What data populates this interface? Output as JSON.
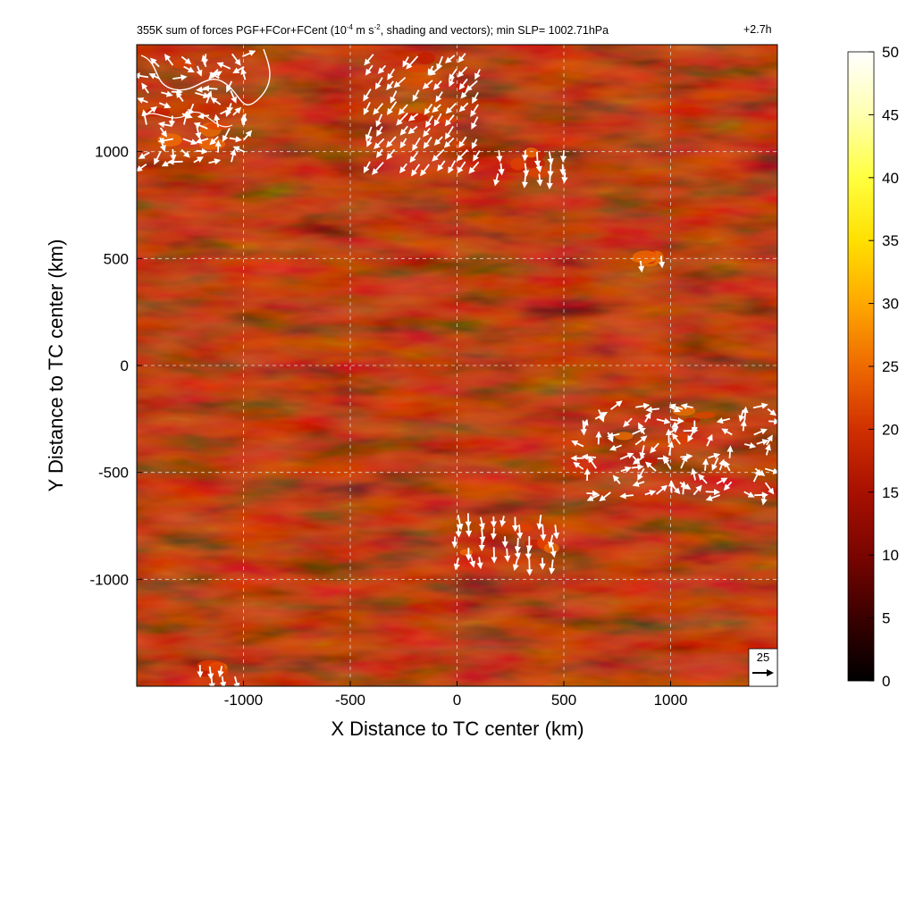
{
  "chart_data": {
    "type": "heatmap",
    "title": {
      "prefix": "355K sum of forces PGF+FCor+FCent (10",
      "exp1": "-4",
      "mid": " m s",
      "exp2": "-2",
      "suffix": ", shading and vectors); min SLP= 1002.71hPa"
    },
    "time_label": "+2.7h",
    "xlabel": "X Distance to TC center (km)",
    "ylabel": "Y Distance to TC center (km)",
    "xlim": [
      -1500,
      1500
    ],
    "ylim": [
      -1500,
      1500
    ],
    "xticks": [
      -1000,
      -500,
      0,
      500,
      1000
    ],
    "yticks": [
      -1000,
      -500,
      0,
      500,
      1000
    ],
    "grid": true,
    "colorbar": {
      "min": 0,
      "max": 50,
      "ticks": [
        0,
        5,
        10,
        15,
        20,
        25,
        30,
        35,
        40,
        45,
        50
      ],
      "colors": [
        "#000000",
        "#3a0000",
        "#7a0500",
        "#a81000",
        "#d03000",
        "#ee6a00",
        "#ffa800",
        "#ffe000",
        "#ffff40",
        "#ffffb0",
        "#ffffff"
      ]
    },
    "reference_vector": {
      "label": "25"
    },
    "vector_groups": [
      {
        "region": "top-left coast",
        "x": [
          -1450,
          -1000
        ],
        "y": [
          950,
          1450
        ],
        "direction": "mixed"
      },
      {
        "region": "top-center",
        "x": [
          -400,
          100
        ],
        "y": [
          950,
          1450
        ],
        "direction": "south-west"
      },
      {
        "region": "north",
        "x": [
          200,
          500
        ],
        "y": [
          900,
          1000
        ],
        "direction": "south"
      },
      {
        "region": "north-east",
        "x": [
          850,
          950
        ],
        "y": [
          480,
          520
        ],
        "direction": "south"
      },
      {
        "region": "east cluster",
        "x": [
          600,
          1450
        ],
        "y": [
          -600,
          -200
        ],
        "direction": "mixed"
      },
      {
        "region": "south-center",
        "x": [
          0,
          450
        ],
        "y": [
          -900,
          -700
        ],
        "direction": "south"
      },
      {
        "region": "bottom-left",
        "x": [
          -1200,
          -1050
        ],
        "y": [
          -1450,
          -1400
        ],
        "direction": "south"
      }
    ]
  }
}
